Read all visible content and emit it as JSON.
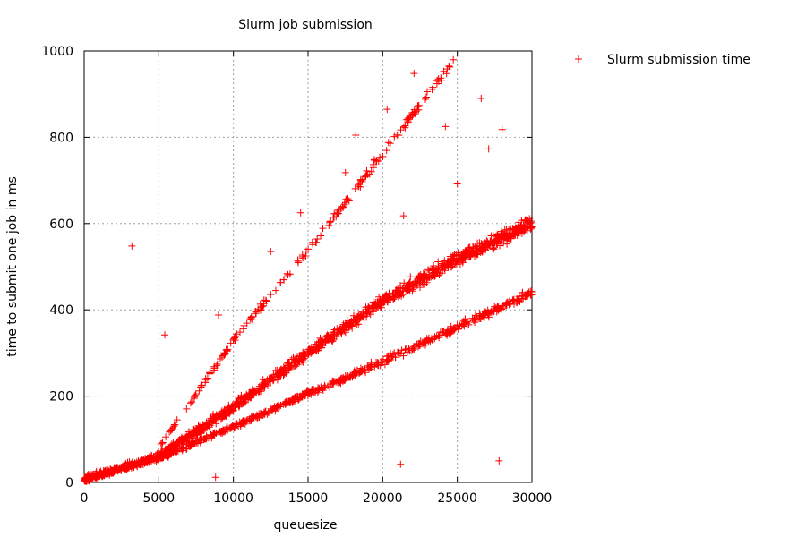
{
  "chart_data": {
    "type": "scatter",
    "title": "Slurm job submission",
    "xlabel": "queuesize",
    "ylabel": "time to submit one job in ms",
    "xlim": [
      0,
      30000
    ],
    "ylim": [
      0,
      1000
    ],
    "x_ticks": [
      "0",
      "5000",
      "10000",
      "15000",
      "20000",
      "25000",
      "30000"
    ],
    "y_ticks": [
      "0",
      "200",
      "400",
      "600",
      "800",
      "1000"
    ],
    "grid": true,
    "legend_position": "outside-right",
    "series": [
      {
        "name": "Slurm submission time",
        "color": "#ff0000",
        "marker": "plus",
        "components": [
          {
            "kind": "main-band",
            "x": [
              0,
              5000,
              10000,
              15000,
              20000,
              25000,
              30000
            ],
            "y": [
              8,
              60,
              175,
              300,
              420,
              520,
              600
            ],
            "spread": 18,
            "points": 1400
          },
          {
            "kind": "lower-band",
            "x": [
              0,
              5000,
              10000,
              15000,
              20000,
              25000,
              30000
            ],
            "y": [
              5,
              55,
              130,
              205,
              280,
              360,
              440
            ],
            "spread": 10,
            "points": 700
          },
          {
            "kind": "upper-band",
            "x": [
              5000,
              10000,
              15000,
              20000,
              25000
            ],
            "y": [
              80,
              330,
              540,
              760,
              990
            ],
            "spread": 12,
            "points": 200
          },
          {
            "kind": "outliers",
            "x": [
              3200,
              5400,
              9000,
              8800,
              12500,
              14500,
              18200,
              17500,
              22100,
              21400,
              24200,
              25000,
              26600,
              27100,
              28000,
              21200,
              27800,
              20300
            ],
            "y": [
              548,
              342,
              388,
              12,
              535,
              625,
              805,
              718,
              948,
              618,
              825,
              692,
              890,
              773,
              818,
              42,
              50,
              865
            ]
          }
        ]
      }
    ]
  }
}
